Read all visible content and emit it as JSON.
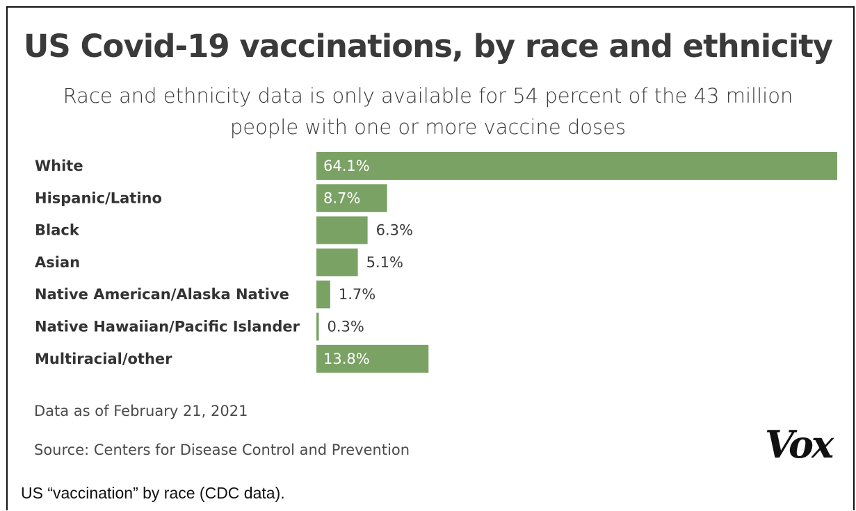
{
  "title": "US Covid-19 vaccinations, by race and ethnicity",
  "subtitle": "Race and ethnicity data is only available for 54 percent of the 43 million people with one or more vaccine doses",
  "note": "Data as of February 21, 2021",
  "source": "Source: Centers for Disease Control and Prevention",
  "logo": "Vox",
  "caption": "US “vaccination” by race (CDC data).",
  "colors": {
    "bar": "#7aa264",
    "label_inside": "#ffffff",
    "label_outside": "#3a3a3a"
  },
  "chart_data": {
    "type": "bar",
    "orientation": "horizontal",
    "categories": [
      "White",
      "Hispanic/Latino",
      "Black",
      "Asian",
      "Native American/Alaska Native",
      "Native Hawaiian/Pacific Islander",
      "Multiracial/other"
    ],
    "values": [
      64.1,
      8.7,
      6.3,
      5.1,
      1.7,
      0.3,
      13.8
    ],
    "value_labels": [
      "64.1%",
      "8.7%",
      "6.3%",
      "5.1%",
      "1.7%",
      "0.3%",
      "13.8%"
    ],
    "title": "US Covid-19 vaccinations, by race and ethnicity",
    "xlim": [
      0,
      64.1
    ],
    "grid": false,
    "legend": "none"
  }
}
